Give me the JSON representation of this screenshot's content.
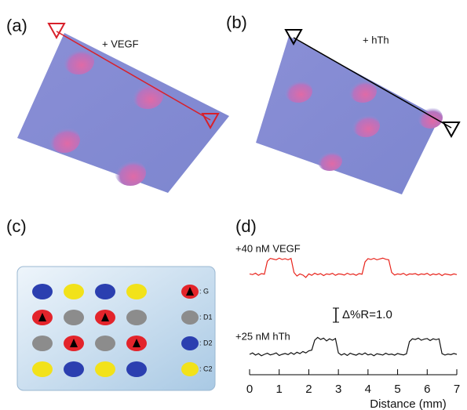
{
  "panels": {
    "a": {
      "label": "(a)",
      "annotation": "+ VEGF"
    },
    "b": {
      "label": "(b)",
      "annotation": "+ hTh"
    },
    "c": {
      "label": "(c)",
      "legend": [
        ": G",
        ": D1",
        ": D2",
        ": C2"
      ]
    },
    "d": {
      "label": "(d)"
    }
  },
  "chart_data": {
    "type": "line",
    "xlabel": "Distance (mm)",
    "xlim": [
      0,
      7
    ],
    "xticks": [
      0,
      1,
      2,
      3,
      4,
      5,
      6,
      7
    ],
    "ylim": [
      0,
      9
    ],
    "scale_bar": {
      "value": 1,
      "label": "Δ%R=1.0"
    },
    "x": [
      0,
      0.1,
      0.2,
      0.3,
      0.4,
      0.5,
      0.6,
      0.7,
      0.8,
      0.9,
      1,
      1.1,
      1.2,
      1.3,
      1.4,
      1.5,
      1.6,
      1.7,
      1.8,
      1.9,
      2,
      2.1,
      2.2,
      2.3,
      2.4,
      2.5,
      2.6,
      2.7,
      2.8,
      2.9,
      3,
      3.1,
      3.2,
      3.3,
      3.4,
      3.5,
      3.6,
      3.7,
      3.8,
      3.9,
      4,
      4.1,
      4.2,
      4.3,
      4.4,
      4.5,
      4.6,
      4.7,
      4.8,
      4.9,
      5,
      5.1,
      5.2,
      5.3,
      5.4,
      5.5,
      5.6,
      5.7,
      5.8,
      5.9,
      6,
      6.1,
      6.2,
      6.3,
      6.4,
      6.5,
      6.6,
      6.7,
      6.8,
      6.9,
      7
    ],
    "series": [
      {
        "name": "+40 nM VEGF",
        "color": "#e8241c",
        "values": [
          6.7,
          6.65,
          6.75,
          6.6,
          6.72,
          6.68,
          7.6,
          7.8,
          7.75,
          7.7,
          7.82,
          7.72,
          7.78,
          7.7,
          7.8,
          6.8,
          6.55,
          6.7,
          6.62,
          6.45,
          6.7,
          6.6,
          6.75,
          6.65,
          6.72,
          6.58,
          6.7,
          6.66,
          6.74,
          6.6,
          6.7,
          6.68,
          6.62,
          6.75,
          6.65,
          6.7,
          6.6,
          6.72,
          6.68,
          7.55,
          7.78,
          7.72,
          7.8,
          7.7,
          7.76,
          7.82,
          7.74,
          7.7,
          6.8,
          6.62,
          6.7,
          6.66,
          6.74,
          6.6,
          6.7,
          6.68,
          6.72,
          6.62,
          6.7,
          6.66,
          6.74,
          6.6,
          6.7,
          6.64,
          6.72,
          6.58,
          6.7,
          6.66,
          6.62,
          6.7,
          6.65
        ]
      },
      {
        "name": "+25 nM hTh",
        "color": "#111111",
        "values": [
          1,
          1.1,
          0.95,
          1.05,
          0.9,
          1,
          1.08,
          0.96,
          1.02,
          1.1,
          0.92,
          1,
          1.06,
          0.98,
          1.12,
          1,
          1.15,
          1.05,
          1.2,
          1.1,
          1.25,
          1.3,
          2,
          2.2,
          2.05,
          2.15,
          1.95,
          2.1,
          2,
          2.12,
          1.1,
          0.95,
          1.05,
          0.92,
          1.08,
          1,
          0.94,
          1.06,
          0.98,
          1.1,
          0.96,
          1.02,
          0.9,
          1.04,
          1,
          0.95,
          1.08,
          0.98,
          1.02,
          0.94,
          1.06,
          1,
          0.96,
          1.04,
          1.9,
          2.1,
          2.05,
          2.15,
          2,
          2.08,
          2.12,
          1.98,
          2.1,
          2.04,
          2.1,
          1.05,
          0.95,
          1.02,
          0.98,
          1.06,
          1
        ]
      }
    ]
  }
}
